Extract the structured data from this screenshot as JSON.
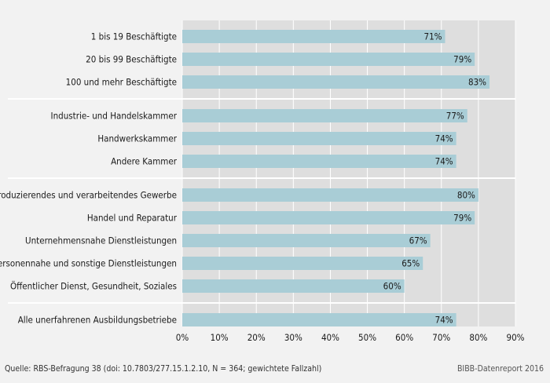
{
  "chart_data": {
    "type": "bar",
    "orientation": "horizontal",
    "categories": [
      "1 bis 19 Beschäftigte",
      "20 bis 99 Beschäftigte",
      "100 und mehr Beschäftigte",
      "Industrie- und Handelskammer",
      "Handwerkskammer",
      "Andere Kammer",
      "Produzierendes und verarbeitendes Gewerbe",
      "Handel und Reparatur",
      "Unternehmensnahe Dienstleistungen",
      "Personennahe und sonstige Dienstleistungen",
      "Öffentlicher Dienst, Gesundheit, Soziales",
      "Alle unerfahrenen Ausbildungsbetriebe"
    ],
    "values": [
      71,
      79,
      83,
      77,
      74,
      74,
      80,
      79,
      67,
      65,
      60,
      74
    ],
    "value_labels": [
      "71%",
      "79%",
      "83%",
      "77%",
      "74%",
      "74%",
      "80%",
      "79%",
      "67%",
      "65%",
      "60%",
      "74%"
    ],
    "groups": [
      3,
      3,
      5,
      1
    ],
    "xlim": [
      0,
      90
    ],
    "xticks": [
      "0%",
      "10%",
      "20%",
      "30%",
      "40%",
      "50%",
      "60%",
      "70%",
      "80%",
      "90%"
    ],
    "grid": true,
    "bar_color": "#a9cdd6",
    "background_color": "#dedede"
  },
  "footer": {
    "source": "Quelle: RBS-Befragung 38 (doi: 10.7803/277.15.1.2.10, N = 364; gewichtete Fallzahl)",
    "credit": "BIBB-Datenreport 2016"
  }
}
